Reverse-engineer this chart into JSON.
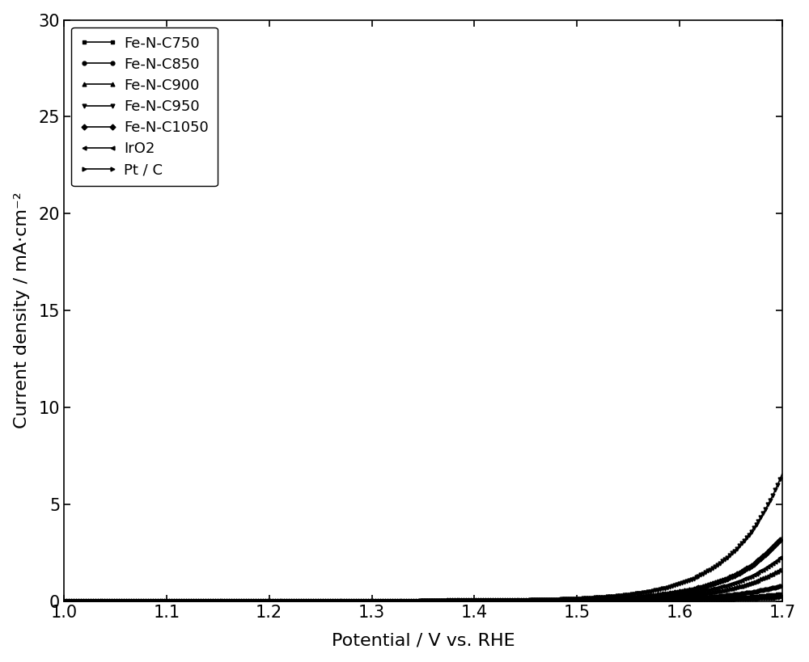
{
  "title": "",
  "xlabel": "Potential / V vs. RHE",
  "ylabel": "Current density / mA·cm⁻²",
  "xlim": [
    1.0,
    1.7
  ],
  "ylim": [
    0,
    30
  ],
  "xticks": [
    1.0,
    1.1,
    1.2,
    1.3,
    1.4,
    1.5,
    1.6,
    1.7
  ],
  "yticks": [
    0,
    5,
    10,
    15,
    20,
    25,
    30
  ],
  "series": [
    {
      "label": "Fe-N-C750",
      "marker": "s",
      "onset": 1.38,
      "A": 0.0012,
      "k": 18.0
    },
    {
      "label": "Fe-N-C850",
      "marker": "o",
      "onset": 1.36,
      "A": 0.0015,
      "k": 18.5
    },
    {
      "label": "Fe-N-C900",
      "marker": "^",
      "onset": 1.34,
      "A": 0.0018,
      "k": 19.0
    },
    {
      "label": "Fe-N-C950",
      "marker": "v",
      "onset": 1.3,
      "A": 0.0022,
      "k": 20.0
    },
    {
      "label": "Fe-N-C1050",
      "marker": "D",
      "onset": 1.32,
      "A": 0.002,
      "k": 19.5
    },
    {
      "label": "IrO2",
      "marker": "<",
      "onset": 1.33,
      "A": 0.0019,
      "k": 19.2
    },
    {
      "label": "Pt / C",
      "marker": ">",
      "onset": 1.4,
      "A": 0.001,
      "k": 17.5
    }
  ],
  "background_color": "#ffffff",
  "linewidth": 1.2,
  "markersize": 3.5,
  "markevery": 10,
  "xlabel_fontsize": 16,
  "ylabel_fontsize": 16,
  "tick_fontsize": 15,
  "legend_fontsize": 13
}
